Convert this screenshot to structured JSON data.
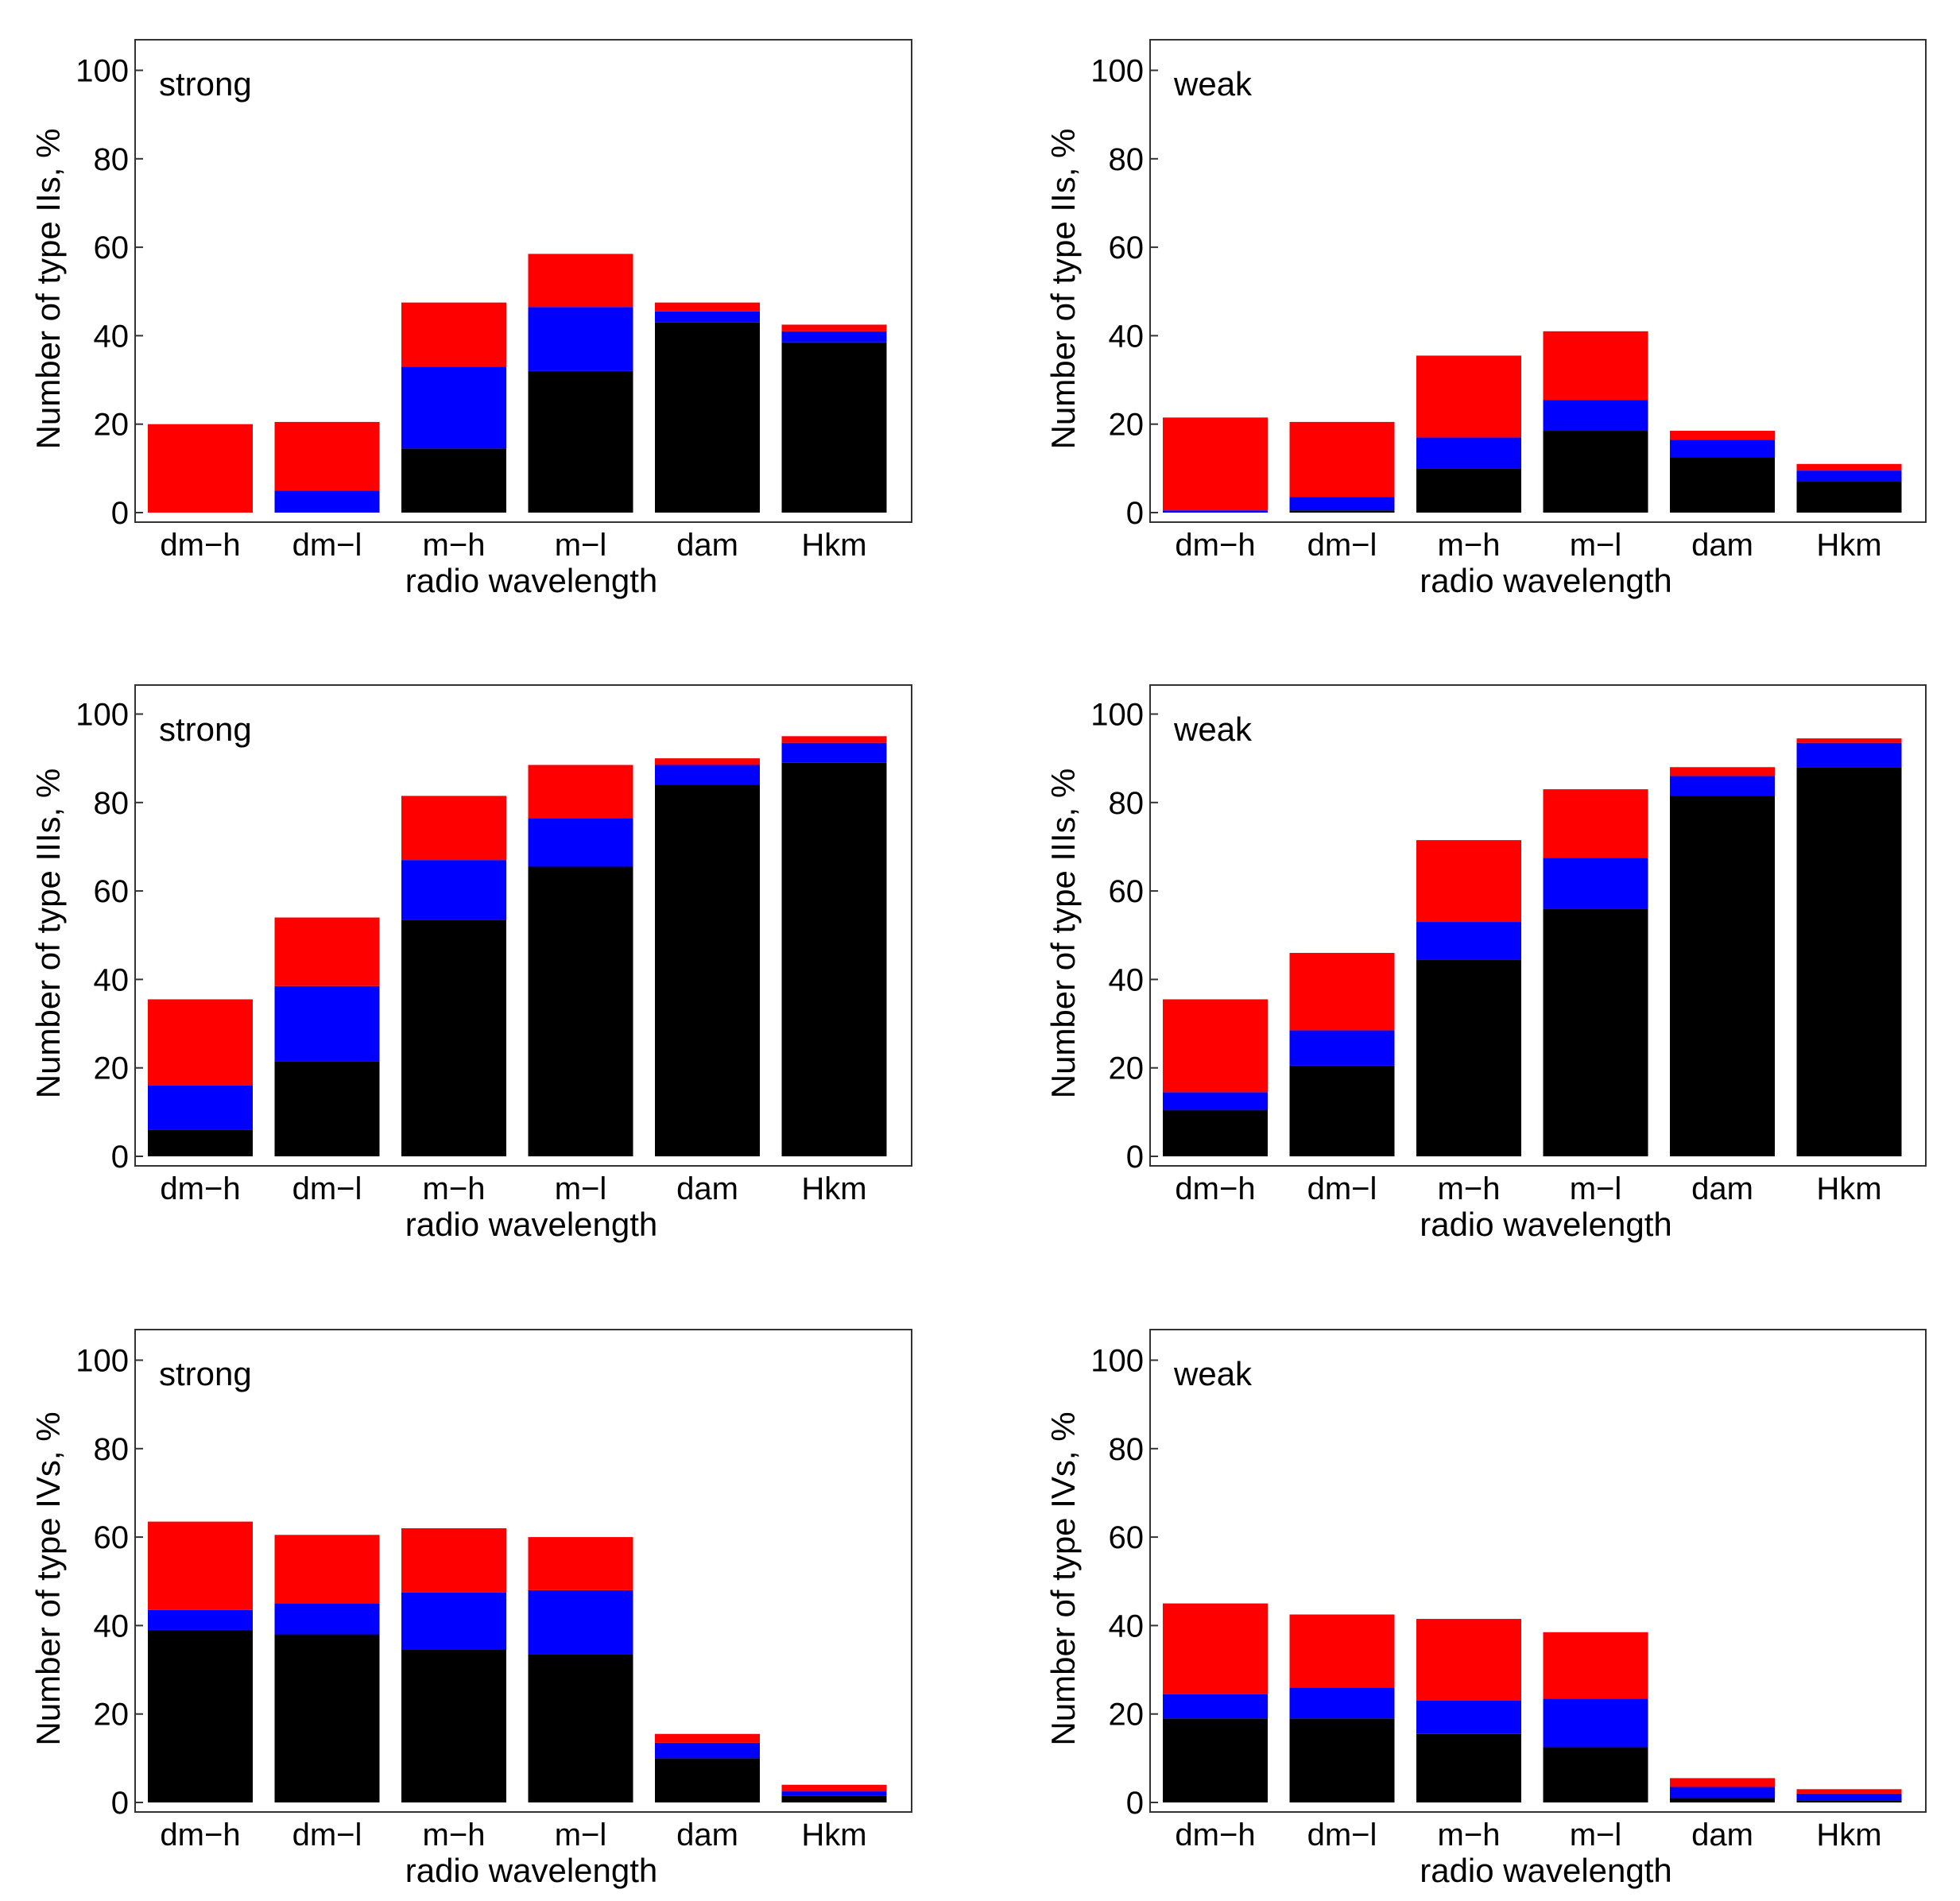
{
  "colors": {
    "black": "#000000",
    "blue": "#0000ff",
    "red": "#ff0000"
  },
  "chart_data": [
    {
      "type": "bar",
      "stacked": true,
      "annotation": "strong",
      "ylabel": "Number  of  type  IIs, %",
      "xlabel": "radio  wavelength",
      "categories": [
        "dm−h",
        "dm−l",
        "m−h",
        "m−l",
        "dam",
        "Hkm"
      ],
      "ylim": [
        0,
        106
      ],
      "yticks": [
        "0",
        "20",
        "40",
        "60",
        "80",
        "100"
      ],
      "series": [
        {
          "name": "black",
          "values": [
            0,
            0,
            14.5,
            32,
            43,
            38.5
          ]
        },
        {
          "name": "blue",
          "values": [
            0,
            5,
            18.5,
            14.5,
            2.5,
            2.5
          ]
        },
        {
          "name": "red",
          "values": [
            20,
            15.5,
            14.5,
            12,
            2,
            1.5
          ]
        }
      ]
    },
    {
      "type": "bar",
      "stacked": true,
      "annotation": "weak",
      "ylabel": "Number  of  type  IIs, %",
      "xlabel": "radio  wavelength",
      "categories": [
        "dm−h",
        "dm−l",
        "m−h",
        "m−l",
        "dam",
        "Hkm"
      ],
      "ylim": [
        0,
        106
      ],
      "yticks": [
        "0",
        "20",
        "40",
        "60",
        "80",
        "100"
      ],
      "series": [
        {
          "name": "black",
          "values": [
            0,
            0.5,
            10,
            18.5,
            12.5,
            7
          ]
        },
        {
          "name": "blue",
          "values": [
            0.5,
            3,
            7,
            7,
            4,
            2.5
          ]
        },
        {
          "name": "red",
          "values": [
            21,
            17,
            18.5,
            15.5,
            2,
            1.5
          ]
        }
      ]
    },
    {
      "type": "bar",
      "stacked": true,
      "annotation": "strong",
      "ylabel": "Number  of  type  IIIs, %",
      "xlabel": "radio  wavelength",
      "categories": [
        "dm−h",
        "dm−l",
        "m−h",
        "m−l",
        "dam",
        "Hkm"
      ],
      "ylim": [
        0,
        106
      ],
      "yticks": [
        "0",
        "20",
        "40",
        "60",
        "80",
        "100"
      ],
      "series": [
        {
          "name": "black",
          "values": [
            6,
            21.5,
            53.5,
            65.5,
            84,
            89
          ]
        },
        {
          "name": "blue",
          "values": [
            10,
            17,
            13.5,
            11,
            4.5,
            4.5
          ]
        },
        {
          "name": "red",
          "values": [
            19.5,
            15.5,
            14.5,
            12,
            1.5,
            1.5
          ]
        }
      ]
    },
    {
      "type": "bar",
      "stacked": true,
      "annotation": "weak",
      "ylabel": "Number  of  type  IIIs, %",
      "xlabel": "radio  wavelength",
      "categories": [
        "dm−h",
        "dm−l",
        "m−h",
        "m−l",
        "dam",
        "Hkm"
      ],
      "ylim": [
        0,
        106
      ],
      "yticks": [
        "0",
        "20",
        "40",
        "60",
        "80",
        "100"
      ],
      "series": [
        {
          "name": "black",
          "values": [
            10.5,
            20.5,
            44.5,
            56,
            81.5,
            88
          ]
        },
        {
          "name": "blue",
          "values": [
            4,
            8,
            8.5,
            11.5,
            4.5,
            5.5
          ]
        },
        {
          "name": "red",
          "values": [
            21,
            17.5,
            18.5,
            15.5,
            2,
            1
          ]
        }
      ]
    },
    {
      "type": "bar",
      "stacked": true,
      "annotation": "strong",
      "ylabel": "Number  of  type  IVs, %",
      "xlabel": "radio  wavelength",
      "categories": [
        "dm−h",
        "dm−l",
        "m−h",
        "m−l",
        "dam",
        "Hkm"
      ],
      "ylim": [
        0,
        106
      ],
      "yticks": [
        "0",
        "20",
        "40",
        "60",
        "80",
        "100"
      ],
      "series": [
        {
          "name": "black",
          "values": [
            39,
            38,
            34.5,
            33.5,
            10,
            1.5
          ]
        },
        {
          "name": "blue",
          "values": [
            4.5,
            7,
            13,
            14.5,
            3.5,
            1
          ]
        },
        {
          "name": "red",
          "values": [
            20,
            15.5,
            14.5,
            12,
            2,
            1.5
          ]
        }
      ]
    },
    {
      "type": "bar",
      "stacked": true,
      "annotation": "weak",
      "ylabel": "Number  of  type  IVs, %",
      "xlabel": "radio  wavelength",
      "categories": [
        "dm−h",
        "dm−l",
        "m−h",
        "m−l",
        "dam",
        "Hkm"
      ],
      "ylim": [
        0,
        106
      ],
      "yticks": [
        "0",
        "20",
        "40",
        "60",
        "80",
        "100"
      ],
      "series": [
        {
          "name": "black",
          "values": [
            19,
            19,
            15.5,
            12.5,
            1,
            0.5
          ]
        },
        {
          "name": "blue",
          "values": [
            5.5,
            7,
            7.5,
            11,
            2.5,
            1.5
          ]
        },
        {
          "name": "red",
          "values": [
            20.5,
            16.5,
            18.5,
            15,
            2,
            1
          ]
        }
      ]
    }
  ]
}
